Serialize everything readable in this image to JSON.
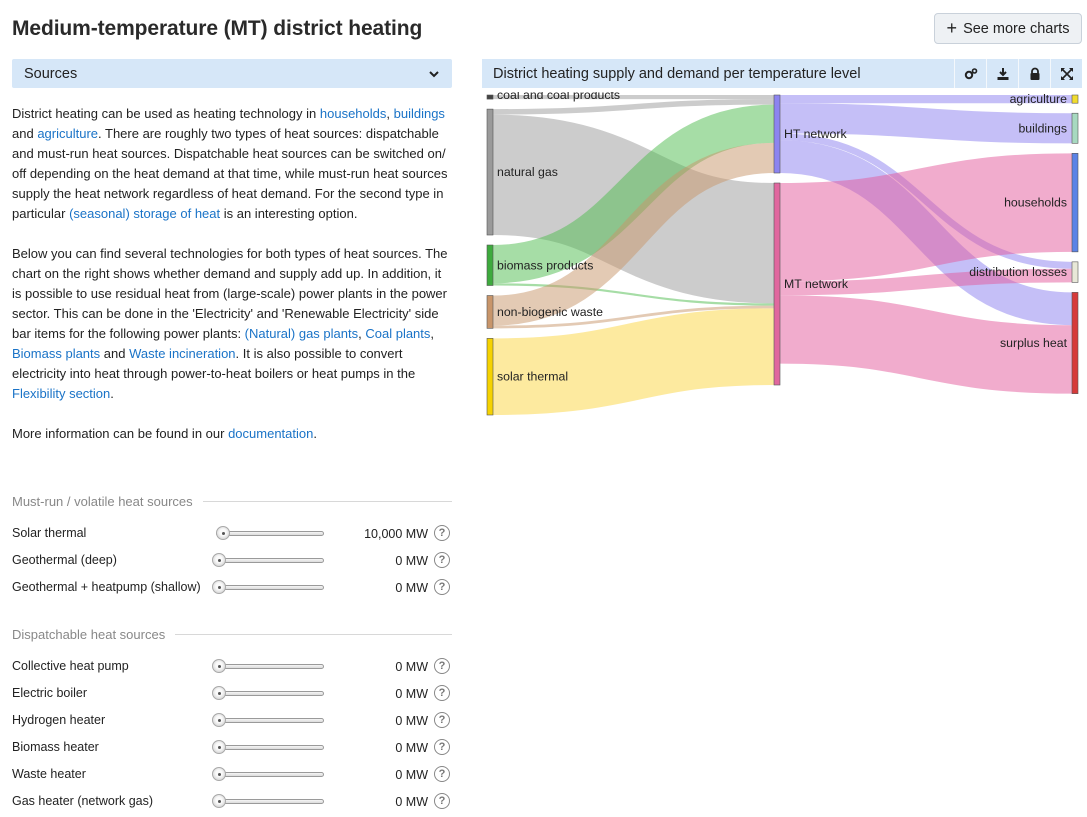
{
  "header": {
    "title": "Medium-temperature (MT) district heating",
    "see_more_label": "See more charts"
  },
  "sources_dropdown": {
    "label": "Sources"
  },
  "description": {
    "p1": [
      {
        "t": "District heating can be used as heating technology in "
      },
      {
        "t": "households",
        "link": true
      },
      {
        "t": ", "
      },
      {
        "t": "buildings",
        "link": true
      },
      {
        "t": " and "
      },
      {
        "t": "agriculture",
        "link": true
      },
      {
        "t": ". There are roughly two types of heat sources: dispatchable and must-run heat sources. Dispatchable heat sources can be switched on/ off depending on the heat demand at that time, while must-run heat sources supply the heat network regardless of heat demand. For the second type in particular "
      },
      {
        "t": "(seasonal) storage of heat",
        "link": true
      },
      {
        "t": " is an interesting option."
      }
    ],
    "p2": [
      {
        "t": "Below you can find several technologies for both types of heat sources. The chart on the right shows whether demand and supply add up. In addition, it is possible to use residual heat from (large-scale) power plants in the power sector. This can be done in the 'Electricity' and 'Renewable Electricity' side bar items for the following power plants: "
      },
      {
        "t": "(Natural) gas plants",
        "link": true
      },
      {
        "t": ", "
      },
      {
        "t": "Coal plants",
        "link": true
      },
      {
        "t": ", "
      },
      {
        "t": "Biomass plants",
        "link": true
      },
      {
        "t": " and "
      },
      {
        "t": "Waste incineration",
        "link": true
      },
      {
        "t": ". It is also possible to convert electricity into heat through power-to-heat boilers or heat pumps in the "
      },
      {
        "t": "Flexibility section",
        "link": true
      },
      {
        "t": "."
      }
    ],
    "p3": [
      {
        "t": "More information can be found in our "
      },
      {
        "t": "documentation",
        "link": true
      },
      {
        "t": "."
      }
    ]
  },
  "must_run": {
    "heading": "Must-run / volatile heat sources",
    "items": [
      {
        "label": "Solar thermal",
        "value": "10,000 MW",
        "fraction": 0.0
      },
      {
        "label": "Geothermal (deep)",
        "value": "0 MW",
        "fraction": 0.0
      },
      {
        "label": "Geothermal + heatpump (shallow)",
        "value": "0 MW",
        "fraction": 0.0
      }
    ]
  },
  "dispatchable": {
    "heading": "Dispatchable heat sources",
    "items": [
      {
        "label": "Collective heat pump",
        "value": "0 MW",
        "fraction": 0.0
      },
      {
        "label": "Electric boiler",
        "value": "0 MW",
        "fraction": 0.0
      },
      {
        "label": "Hydrogen heater",
        "value": "0 MW",
        "fraction": 0.0
      },
      {
        "label": "Biomass heater",
        "value": "0 MW",
        "fraction": 0.0
      },
      {
        "label": "Waste heater",
        "value": "0 MW",
        "fraction": 0.0
      },
      {
        "label": "Gas heater (network gas)",
        "value": "0 MW",
        "fraction": 0.0
      }
    ]
  },
  "chart": {
    "title": "District heating supply and demand per temperature level",
    "tools": [
      "settings-icon",
      "download-icon",
      "lock-icon",
      "expand-icon"
    ]
  },
  "chart_data": {
    "type": "sankey",
    "title": "District heating supply and demand per temperature level",
    "nodes": [
      {
        "id": "coal",
        "label": "coal and coal products",
        "color": "#444444"
      },
      {
        "id": "gas",
        "label": "natural gas",
        "color": "#9a9a9a"
      },
      {
        "id": "biomass",
        "label": "biomass products",
        "color": "#3daa3d"
      },
      {
        "id": "waste",
        "label": "non-biogenic waste",
        "color": "#c8956a"
      },
      {
        "id": "solar",
        "label": "solar thermal",
        "color": "#f5d200"
      },
      {
        "id": "ht",
        "label": "HT network",
        "color": "#8c84f0"
      },
      {
        "id": "mt",
        "label": "MT network",
        "color": "#e0679e"
      },
      {
        "id": "agri",
        "label": "agriculture",
        "color": "#f1dc2e"
      },
      {
        "id": "buildings",
        "label": "buildings",
        "color": "#a7d9c0"
      },
      {
        "id": "households",
        "label": "households",
        "color": "#5b83e6"
      },
      {
        "id": "losses",
        "label": "distribution losses",
        "color": "#e8e8d8"
      },
      {
        "id": "surplus",
        "label": "surplus heat",
        "color": "#d63a3a"
      }
    ],
    "links": [
      {
        "source": "coal",
        "target": "ht",
        "value": 1.5
      },
      {
        "source": "gas",
        "target": "ht",
        "value": 2
      },
      {
        "source": "gas",
        "target": "mt",
        "value": 44
      },
      {
        "source": "biomass",
        "target": "ht",
        "value": 14
      },
      {
        "source": "biomass",
        "target": "mt",
        "value": 0.8
      },
      {
        "source": "waste",
        "target": "ht",
        "value": 11
      },
      {
        "source": "waste",
        "target": "mt",
        "value": 1
      },
      {
        "source": "solar",
        "target": "mt",
        "value": 28
      },
      {
        "source": "ht",
        "target": "agri",
        "value": 3
      },
      {
        "source": "ht",
        "target": "buildings",
        "value": 11
      },
      {
        "source": "ht",
        "target": "losses",
        "value": 2.5
      },
      {
        "source": "ht",
        "target": "surplus",
        "value": 12
      },
      {
        "source": "mt",
        "target": "households",
        "value": 36
      },
      {
        "source": "mt",
        "target": "losses",
        "value": 5
      },
      {
        "source": "mt",
        "target": "surplus",
        "value": 25
      }
    ]
  }
}
